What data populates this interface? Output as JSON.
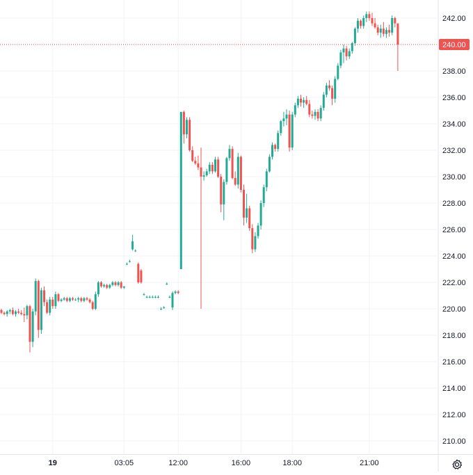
{
  "colors": {
    "up": "#26a69a",
    "up_bright": "#22ab94",
    "down": "#ef5350",
    "grid": "#f0f3fa",
    "axis_border": "#e0e3eb",
    "text": "#131722",
    "last_price_line": "#ef5350"
  },
  "icons": {
    "settings": "gear-icon"
  },
  "chart_data": {
    "type": "candlestick",
    "title": "",
    "xlabel": "",
    "ylabel": "",
    "ylim": [
      208.5,
      243.0
    ],
    "grid": true,
    "y_ticks": [
      "242.00",
      "240.00",
      "238.00",
      "236.00",
      "234.00",
      "232.00",
      "230.00",
      "228.00",
      "226.00",
      "224.00",
      "222.00",
      "220.00",
      "218.00",
      "216.00",
      "214.00",
      "212.00",
      "210.00"
    ],
    "x_ticks": [
      {
        "label": "19",
        "bold": true,
        "bar": 18
      },
      {
        "label": "03:05",
        "bold": false,
        "bar": 43
      },
      {
        "label": "12:00",
        "bold": false,
        "bar": 62
      },
      {
        "label": "16:00",
        "bold": false,
        "bar": 84
      },
      {
        "label": "18:00",
        "bold": false,
        "bar": 102
      },
      {
        "label": "21:00",
        "bold": false,
        "bar": 129
      }
    ],
    "last_price": 240.0,
    "last_price_label": "240.00",
    "candles": [
      [
        219.9,
        220.0,
        219.6,
        219.7
      ],
      [
        219.7,
        219.8,
        219.5,
        219.6
      ],
      [
        219.6,
        219.9,
        219.4,
        219.8
      ],
      [
        219.8,
        220.0,
        219.6,
        219.9
      ],
      [
        219.9,
        220.1,
        219.5,
        219.6
      ],
      [
        219.6,
        219.9,
        219.4,
        219.8
      ],
      [
        219.8,
        220.0,
        219.6,
        219.7
      ],
      [
        219.7,
        219.9,
        219.5,
        219.6
      ],
      [
        219.6,
        220.1,
        219.0,
        219.5
      ],
      [
        219.5,
        220.3,
        219.2,
        220.2
      ],
      [
        220.2,
        220.3,
        216.7,
        217.5
      ],
      [
        217.5,
        220.0,
        217.1,
        219.8
      ],
      [
        219.8,
        222.3,
        219.5,
        222.1
      ],
      [
        222.1,
        222.2,
        217.8,
        218.4
      ],
      [
        218.4,
        221.6,
        218.1,
        221.4
      ],
      [
        221.4,
        221.7,
        220.2,
        220.5
      ],
      [
        220.5,
        220.7,
        219.6,
        219.7
      ],
      [
        219.7,
        220.9,
        219.5,
        220.7
      ],
      [
        220.7,
        220.9,
        220.0,
        220.2
      ],
      [
        220.2,
        221.3,
        220.0,
        221.1
      ],
      [
        221.1,
        221.2,
        220.5,
        220.6
      ],
      [
        220.6,
        220.8,
        220.5,
        220.7
      ],
      [
        220.7,
        220.9,
        220.6,
        220.8
      ],
      [
        220.8,
        220.9,
        220.5,
        220.6
      ],
      [
        220.6,
        220.9,
        220.5,
        220.8
      ],
      [
        220.8,
        220.9,
        220.6,
        220.7
      ],
      [
        220.7,
        220.8,
        220.6,
        220.7
      ],
      [
        220.7,
        220.9,
        220.5,
        220.8
      ],
      [
        220.8,
        220.9,
        220.5,
        220.6
      ],
      [
        220.6,
        220.9,
        220.5,
        220.8
      ],
      [
        220.8,
        220.9,
        220.6,
        220.7
      ],
      [
        220.7,
        220.8,
        220.4,
        220.5
      ],
      [
        220.5,
        220.6,
        219.9,
        220.0
      ],
      [
        220.0,
        221.3,
        219.9,
        221.1
      ],
      [
        221.1,
        222.1,
        220.9,
        222.0
      ],
      [
        222.0,
        222.1,
        221.6,
        221.7
      ],
      [
        221.7,
        221.9,
        221.6,
        221.8
      ],
      [
        221.8,
        221.9,
        221.5,
        221.6
      ],
      [
        221.6,
        221.9,
        221.5,
        221.8
      ],
      [
        221.8,
        222.1,
        221.7,
        222.0
      ],
      [
        222.0,
        222.1,
        221.7,
        221.8
      ],
      [
        221.8,
        222.1,
        221.7,
        222.0
      ],
      [
        222.0,
        222.1,
        221.5,
        221.6
      ],
      [
        221.6,
        221.7,
        221.5,
        221.7
      ],
      [
        223.4,
        223.5,
        223.3,
        223.4
      ],
      [
        223.6,
        223.7,
        223.5,
        223.6
      ],
      [
        224.5,
        225.6,
        224.4,
        225.1
      ],
      [
        224.4,
        224.5,
        224.3,
        224.4
      ],
      [
        223.4,
        223.5,
        221.9,
        222.0
      ],
      [
        222.9,
        223.0,
        221.9,
        222.0
      ],
      [
        221.1,
        221.2,
        221.0,
        221.1
      ],
      [
        220.9,
        221.0,
        220.8,
        220.9
      ],
      [
        220.9,
        221.0,
        220.8,
        220.9
      ],
      [
        220.9,
        221.0,
        220.8,
        220.9
      ],
      [
        220.9,
        221.0,
        220.8,
        220.9
      ],
      [
        220.9,
        221.0,
        220.8,
        220.9
      ],
      [
        220.0,
        220.1,
        219.9,
        220.0
      ],
      [
        220.1,
        220.2,
        220.0,
        220.1
      ],
      [
        221.9,
        222.0,
        221.8,
        221.9
      ],
      [
        220.9,
        221.0,
        220.8,
        220.9
      ],
      [
        220.1,
        221.3,
        219.9,
        221.2
      ],
      [
        221.2,
        221.4,
        221.1,
        221.3
      ],
      [
        221.3,
        221.4,
        221.1,
        221.2
      ],
      [
        223.0,
        234.9,
        223.0,
        234.9
      ],
      [
        234.9,
        235.0,
        232.5,
        233.2
      ],
      [
        233.2,
        234.5,
        232.9,
        234.3
      ],
      [
        234.3,
        234.5,
        231.9,
        232.0
      ],
      [
        232.0,
        232.3,
        231.1,
        231.2
      ],
      [
        231.2,
        231.5,
        230.9,
        231.0
      ],
      [
        231.0,
        231.6,
        230.5,
        230.7
      ],
      [
        230.7,
        232.2,
        220.0,
        230.0
      ],
      [
        230.0,
        230.4,
        229.7,
        230.1
      ],
      [
        230.1,
        230.6,
        230.0,
        230.4
      ],
      [
        230.4,
        231.1,
        230.2,
        230.9
      ],
      [
        230.9,
        231.1,
        230.2,
        230.4
      ],
      [
        230.4,
        231.5,
        230.3,
        231.3
      ],
      [
        231.3,
        231.5,
        229.9,
        230.0
      ],
      [
        230.0,
        230.2,
        227.3,
        227.9
      ],
      [
        227.9,
        229.8,
        226.7,
        229.6
      ],
      [
        229.6,
        231.5,
        229.4,
        231.4
      ],
      [
        231.4,
        232.4,
        231.2,
        232.1
      ],
      [
        232.1,
        232.3,
        229.8,
        229.9
      ],
      [
        229.9,
        230.4,
        229.3,
        229.4
      ],
      [
        229.4,
        231.8,
        229.1,
        231.5
      ],
      [
        231.5,
        231.6,
        228.8,
        229.0
      ],
      [
        229.0,
        229.4,
        226.3,
        226.9
      ],
      [
        226.9,
        228.7,
        226.5,
        227.6
      ],
      [
        227.6,
        227.8,
        225.9,
        226.1
      ],
      [
        226.1,
        226.4,
        224.2,
        224.5
      ],
      [
        224.5,
        225.8,
        224.3,
        225.5
      ],
      [
        225.5,
        226.5,
        225.3,
        226.3
      ],
      [
        226.3,
        228.2,
        226.0,
        228.0
      ],
      [
        228.0,
        229.4,
        227.7,
        229.2
      ],
      [
        229.2,
        230.6,
        228.9,
        230.4
      ],
      [
        230.4,
        231.7,
        230.3,
        231.5
      ],
      [
        231.5,
        232.6,
        231.3,
        232.4
      ],
      [
        232.4,
        232.5,
        231.9,
        232.1
      ],
      [
        232.1,
        233.5,
        231.9,
        233.3
      ],
      [
        233.3,
        234.3,
        233.1,
        234.2
      ],
      [
        234.2,
        234.9,
        233.8,
        234.4
      ],
      [
        234.4,
        235.1,
        233.9,
        234.7
      ],
      [
        234.7,
        235.0,
        231.9,
        232.2
      ],
      [
        232.2,
        234.9,
        232.0,
        234.7
      ],
      [
        234.7,
        235.6,
        234.5,
        235.4
      ],
      [
        235.4,
        236.1,
        235.2,
        235.9
      ],
      [
        235.9,
        236.2,
        235.3,
        235.6
      ],
      [
        235.6,
        236.0,
        235.2,
        235.8
      ],
      [
        235.8,
        236.1,
        235.4,
        235.5
      ],
      [
        235.5,
        235.8,
        234.5,
        234.7
      ],
      [
        234.7,
        235.0,
        234.4,
        234.6
      ],
      [
        234.6,
        235.1,
        234.3,
        234.9
      ],
      [
        234.9,
        235.1,
        234.2,
        234.4
      ],
      [
        234.4,
        235.4,
        234.2,
        235.2
      ],
      [
        235.2,
        236.4,
        235.0,
        236.2
      ],
      [
        236.2,
        237.1,
        236.0,
        236.9
      ],
      [
        236.9,
        237.3,
        236.5,
        236.7
      ],
      [
        236.7,
        236.9,
        235.4,
        235.9
      ],
      [
        235.9,
        237.6,
        235.6,
        237.4
      ],
      [
        237.4,
        238.6,
        237.3,
        238.4
      ],
      [
        238.4,
        239.6,
        238.2,
        239.4
      ],
      [
        239.4,
        240.0,
        238.6,
        239.7
      ],
      [
        239.7,
        239.9,
        238.8,
        239.1
      ],
      [
        239.1,
        239.7,
        238.9,
        239.5
      ],
      [
        239.5,
        240.2,
        239.3,
        240.1
      ],
      [
        240.1,
        241.3,
        239.9,
        241.2
      ],
      [
        241.2,
        242.0,
        240.9,
        241.8
      ],
      [
        241.8,
        241.9,
        241.2,
        241.4
      ],
      [
        241.4,
        242.2,
        241.2,
        242.0
      ],
      [
        242.0,
        242.5,
        241.7,
        242.3
      ],
      [
        242.3,
        242.5,
        241.8,
        242.0
      ],
      [
        242.0,
        242.4,
        241.4,
        241.6
      ],
      [
        241.6,
        242.0,
        241.2,
        241.3
      ],
      [
        241.3,
        241.5,
        240.7,
        240.9
      ],
      [
        240.9,
        241.5,
        240.5,
        241.2
      ],
      [
        241.2,
        241.7,
        240.6,
        240.8
      ],
      [
        240.8,
        241.3,
        240.5,
        241.1
      ],
      [
        241.1,
        241.5,
        240.6,
        240.9
      ],
      [
        240.9,
        242.2,
        240.7,
        242.0
      ],
      [
        242.0,
        242.1,
        241.3,
        241.6
      ],
      [
        241.6,
        241.6,
        238.0,
        240.0
      ]
    ]
  }
}
